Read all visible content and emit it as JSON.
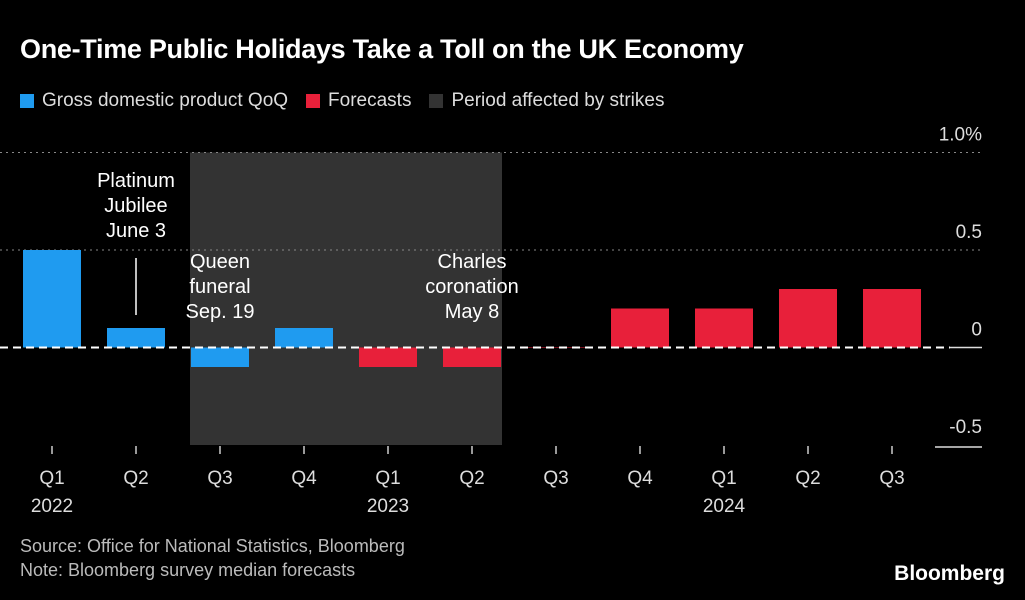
{
  "title": "One-Time Public Holidays Take a Toll on the UK Economy",
  "legend": [
    {
      "label": "Gross domestic product QoQ",
      "color": "#1f9bf0"
    },
    {
      "label": "Forecasts",
      "color": "#e8203a"
    },
    {
      "label": "Period affected by strikes",
      "color": "#333333"
    }
  ],
  "chart_data": {
    "type": "bar",
    "categories": [
      "Q1",
      "Q2",
      "Q3",
      "Q4",
      "Q1",
      "Q2",
      "Q3",
      "Q4",
      "Q1",
      "Q2",
      "Q3"
    ],
    "year_labels": [
      {
        "index": 0,
        "label": "2022"
      },
      {
        "index": 4,
        "label": "2023"
      },
      {
        "index": 8,
        "label": "2024"
      }
    ],
    "series": [
      {
        "name": "Gross domestic product QoQ",
        "values": [
          0.5,
          0.1,
          -0.1,
          0.1,
          null,
          null,
          null,
          null,
          null,
          null,
          null
        ],
        "color": "#1f9bf0"
      },
      {
        "name": "Forecasts",
        "values": [
          null,
          null,
          null,
          null,
          -0.1,
          -0.1,
          0.0,
          0.2,
          0.2,
          0.3,
          0.3
        ],
        "color": "#e8203a"
      }
    ],
    "shaded_period": {
      "label": "Period affected by strikes",
      "from_index": 2,
      "to_index": 5
    },
    "annotations": [
      {
        "index": 1,
        "text": [
          "Platinum",
          "Jubilee",
          "June 3"
        ]
      },
      {
        "index": 2,
        "text": [
          "Queen",
          "funeral",
          "Sep. 19"
        ]
      },
      {
        "index": 5,
        "text": [
          "Charles",
          "coronation",
          "May 8"
        ]
      }
    ],
    "yticks": [
      {
        "v": 1.0,
        "label": "1.0%"
      },
      {
        "v": 0.5,
        "label": "0.5"
      },
      {
        "v": 0,
        "label": "0"
      },
      {
        "v": -0.5,
        "label": "-0.5"
      }
    ],
    "ylim": [
      -0.5,
      1.0
    ],
    "grid": true,
    "xlabel": "",
    "ylabel": ""
  },
  "footer": {
    "source": "Source: Office for National Statistics, Bloomberg",
    "note": "Note: Bloomberg survey median forecasts",
    "brand": "Bloomberg",
    "watermark": "Bloomberg"
  }
}
